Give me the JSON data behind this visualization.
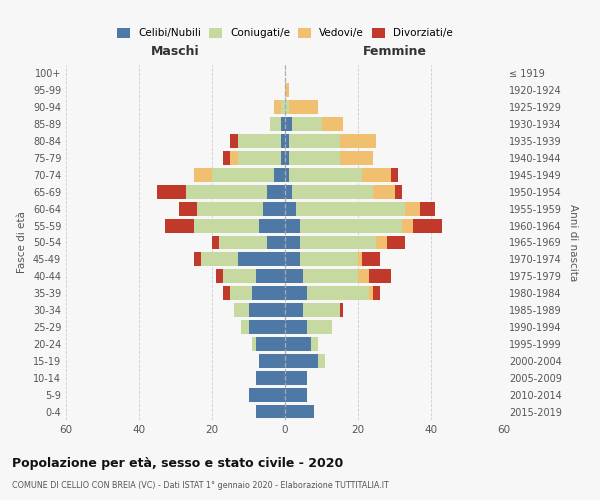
{
  "age_groups": [
    "0-4",
    "5-9",
    "10-14",
    "15-19",
    "20-24",
    "25-29",
    "30-34",
    "35-39",
    "40-44",
    "45-49",
    "50-54",
    "55-59",
    "60-64",
    "65-69",
    "70-74",
    "75-79",
    "80-84",
    "85-89",
    "90-94",
    "95-99",
    "100+"
  ],
  "birth_years": [
    "2015-2019",
    "2010-2014",
    "2005-2009",
    "2000-2004",
    "1995-1999",
    "1990-1994",
    "1985-1989",
    "1980-1984",
    "1975-1979",
    "1970-1974",
    "1965-1969",
    "1960-1964",
    "1955-1959",
    "1950-1954",
    "1945-1949",
    "1940-1944",
    "1935-1939",
    "1930-1934",
    "1925-1929",
    "1920-1924",
    "≤ 1919"
  ],
  "maschi": {
    "celibi": [
      8,
      10,
      8,
      7,
      8,
      10,
      10,
      9,
      8,
      13,
      5,
      7,
      6,
      5,
      3,
      1,
      1,
      1,
      0,
      0,
      0
    ],
    "coniugati": [
      0,
      0,
      0,
      0,
      1,
      2,
      4,
      6,
      9,
      10,
      13,
      18,
      18,
      22,
      17,
      12,
      12,
      3,
      1,
      0,
      0
    ],
    "vedovi": [
      0,
      0,
      0,
      0,
      0,
      0,
      0,
      0,
      0,
      0,
      0,
      0,
      0,
      0,
      5,
      2,
      0,
      0,
      2,
      0,
      0
    ],
    "divorziati": [
      0,
      0,
      0,
      0,
      0,
      0,
      0,
      2,
      2,
      2,
      2,
      8,
      5,
      8,
      0,
      2,
      2,
      0,
      0,
      0,
      0
    ]
  },
  "femmine": {
    "nubili": [
      8,
      6,
      6,
      9,
      7,
      6,
      5,
      6,
      5,
      4,
      4,
      4,
      3,
      2,
      1,
      1,
      1,
      2,
      0,
      0,
      0
    ],
    "coniugate": [
      0,
      0,
      0,
      2,
      2,
      7,
      10,
      17,
      15,
      16,
      21,
      28,
      30,
      22,
      20,
      14,
      14,
      8,
      1,
      0,
      0
    ],
    "vedove": [
      0,
      0,
      0,
      0,
      0,
      0,
      0,
      1,
      3,
      1,
      3,
      3,
      4,
      6,
      8,
      9,
      10,
      6,
      8,
      1,
      0
    ],
    "divorziate": [
      0,
      0,
      0,
      0,
      0,
      0,
      1,
      2,
      6,
      5,
      5,
      8,
      4,
      2,
      2,
      0,
      0,
      0,
      0,
      0,
      0
    ]
  },
  "colors": {
    "celibi_nubili": "#4e79a7",
    "coniugati_e": "#c5d9a0",
    "vedovi_e": "#f0c070",
    "divorziati_e": "#c0392b"
  },
  "xlim": 60,
  "title": "Popolazione per età, sesso e stato civile - 2020",
  "subtitle": "COMUNE DI CELLIO CON BREIA (VC) - Dati ISTAT 1° gennaio 2020 - Elaborazione TUTTITALIA.IT",
  "ylabel_left": "Fasce di età",
  "ylabel_right": "Anni di nascita",
  "xlabel_left": "Maschi",
  "xlabel_right": "Femmine",
  "background_color": "#f7f7f7"
}
